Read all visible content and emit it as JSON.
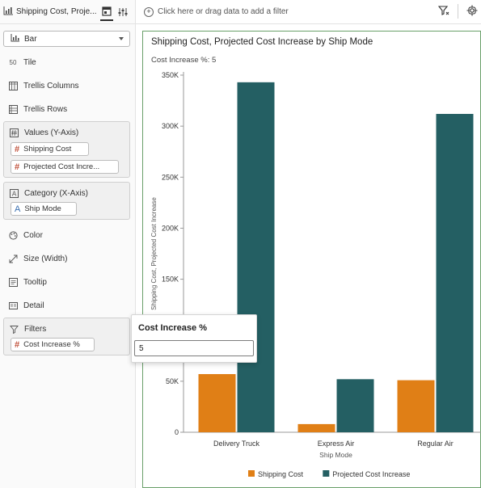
{
  "tab": {
    "title": "Shipping Cost, Proje..."
  },
  "chart_type": {
    "value": "Bar"
  },
  "grammar": {
    "tile": "Tile",
    "trellis_columns": "Trellis Columns",
    "trellis_rows": "Trellis Rows",
    "values_label": "Values (Y-Axis)",
    "values_items": [
      "Shipping Cost",
      "Projected Cost Incre..."
    ],
    "category_label": "Category (X-Axis)",
    "category_items": [
      "Ship Mode"
    ],
    "color": "Color",
    "size": "Size (Width)",
    "tooltip": "Tooltip",
    "detail": "Detail",
    "filters_label": "Filters",
    "filters_items": [
      "Cost Increase %"
    ]
  },
  "filterbar": {
    "placeholder": "Click here or drag data to add a filter"
  },
  "canvas": {
    "title": "Shipping Cost, Projected Cost Increase by Ship Mode",
    "param_label": "Cost Increase %:",
    "param_value": "5"
  },
  "popover": {
    "title": "Cost Increase %",
    "value": "5"
  },
  "colors": {
    "shipping_cost": "#e07f16",
    "projected": "#245f63",
    "canvas_border": "#6aa06a"
  },
  "chart_data": {
    "type": "bar",
    "categories": [
      "Delivery Truck",
      "Express Air",
      "Regular Air"
    ],
    "series": [
      {
        "name": "Shipping Cost",
        "values": [
          57000,
          8000,
          51000
        ]
      },
      {
        "name": "Projected Cost Increase",
        "values": [
          343000,
          52000,
          312000
        ]
      }
    ],
    "xlabel": "Ship Mode",
    "ylabel": "Shipping Cost, Projected Cost Increase",
    "ylim": [
      0,
      350000
    ],
    "yticks": [
      0,
      50000,
      100000,
      150000,
      200000,
      250000,
      300000,
      350000
    ],
    "ytick_labels": [
      "0",
      "50K",
      "100K",
      "150K",
      "200K",
      "250K",
      "300K",
      "350K"
    ],
    "grid": false,
    "legend": "bottom-center"
  }
}
